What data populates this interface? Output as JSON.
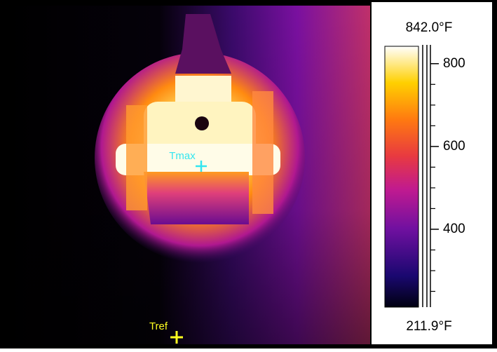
{
  "thermal_image": {
    "markers": [
      {
        "label": "Tmax"
      },
      {
        "label": "Tref"
      }
    ]
  },
  "colorbar": {
    "max_label": "842.0°F",
    "min_label": "211.9°F",
    "range": [
      211.9,
      842.0
    ],
    "ticks": [
      400,
      600,
      800
    ],
    "minor_ticks": [
      250,
      300,
      350,
      450,
      500,
      550,
      650,
      700,
      750
    ]
  }
}
